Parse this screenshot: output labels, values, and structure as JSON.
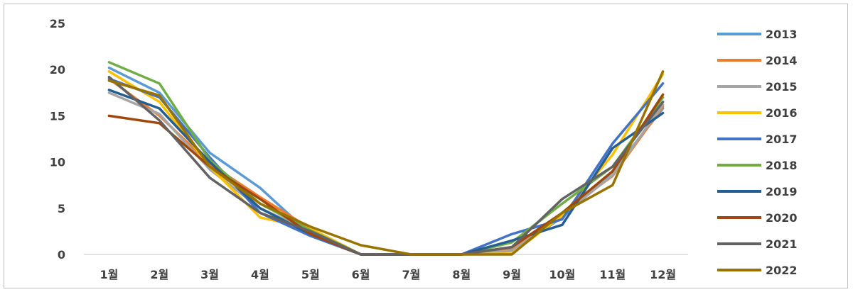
{
  "chart_data": {
    "type": "line",
    "categories": [
      "1월",
      "2월",
      "3월",
      "4월",
      "5월",
      "6월",
      "7월",
      "8월",
      "9월",
      "10월",
      "11월",
      "12월"
    ],
    "ylim": [
      0,
      25
    ],
    "yticks": [
      "0",
      "5",
      "10",
      "15",
      "20",
      "25"
    ],
    "grid": false,
    "legend_position": "right",
    "series": [
      {
        "name": "2013",
        "color": "#5b9bd5",
        "values": [
          20.2,
          17.5,
          11.0,
          7.2,
          2.2,
          0,
          0,
          0,
          0.4,
          4.0,
          9.0,
          15.8
        ]
      },
      {
        "name": "2014",
        "color": "#ed7d31",
        "values": [
          19.0,
          15.0,
          9.8,
          6.2,
          2.8,
          0,
          0,
          0,
          0.6,
          4.5,
          8.5,
          16.0
        ]
      },
      {
        "name": "2015",
        "color": "#a5a5a5",
        "values": [
          17.5,
          15.2,
          9.2,
          5.0,
          2.5,
          0,
          0,
          0,
          0.4,
          4.2,
          8.6,
          16.2
        ]
      },
      {
        "name": "2016",
        "color": "#ffc000",
        "values": [
          19.8,
          16.5,
          9.5,
          4.0,
          2.8,
          0,
          0,
          0,
          0.1,
          4.2,
          10.8,
          19.5
        ]
      },
      {
        "name": "2017",
        "color": "#4472c4",
        "values": [
          19.0,
          17.0,
          10.5,
          4.5,
          2.0,
          0,
          0,
          0,
          2.2,
          3.8,
          12.0,
          18.5
        ]
      },
      {
        "name": "2018",
        "color": "#70ad47",
        "values": [
          20.8,
          18.5,
          10.2,
          5.5,
          2.6,
          0,
          0,
          0,
          1.3,
          5.5,
          9.5,
          17.0
        ]
      },
      {
        "name": "2019",
        "color": "#255e91",
        "values": [
          17.8,
          15.8,
          10.0,
          5.0,
          2.2,
          0,
          0,
          0,
          1.5,
          3.2,
          11.5,
          15.3
        ]
      },
      {
        "name": "2020",
        "color": "#9e480e",
        "values": [
          15.0,
          14.2,
          9.5,
          6.0,
          2.2,
          0,
          0,
          0,
          0.8,
          4.5,
          9.0,
          17.3
        ]
      },
      {
        "name": "2021",
        "color": "#636363",
        "values": [
          19.2,
          14.5,
          8.3,
          4.5,
          2.5,
          0,
          0,
          0,
          0.8,
          6.0,
          9.5,
          16.5
        ]
      },
      {
        "name": "2022",
        "color": "#997300",
        "values": [
          18.8,
          17.2,
          9.5,
          5.5,
          3.0,
          1.0,
          0,
          0,
          0,
          4.5,
          7.5,
          19.8
        ]
      }
    ]
  }
}
